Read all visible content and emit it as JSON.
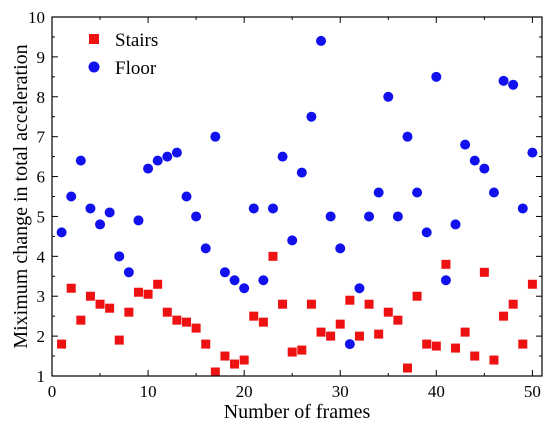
{
  "chart_data": {
    "type": "scatter",
    "xlabel": "Number of frames",
    "ylabel": "Miximum change in total acceleration",
    "xlim": [
      0,
      51
    ],
    "ylim": [
      1,
      10
    ],
    "xticks": [
      "0",
      "10",
      "20",
      "30",
      "40",
      "50"
    ],
    "yticks": [
      "1",
      "2",
      "3",
      "4",
      "5",
      "6",
      "7",
      "8",
      "9",
      "10"
    ],
    "legend_position": "top-left",
    "grid": false,
    "series": [
      {
        "name": "Stairs",
        "marker": "square",
        "color": "#ee1111",
        "x": [
          1,
          2,
          3,
          4,
          5,
          6,
          7,
          8,
          9,
          10,
          11,
          12,
          13,
          14,
          15,
          16,
          17,
          18,
          19,
          20,
          21,
          22,
          23,
          24,
          25,
          26,
          27,
          28,
          29,
          30,
          31,
          32,
          33,
          34,
          35,
          36,
          37,
          38,
          39,
          40,
          41,
          42,
          43,
          44,
          45,
          46,
          47,
          48,
          49,
          50
        ],
        "y": [
          1.8,
          3.2,
          2.4,
          3.0,
          2.8,
          2.7,
          1.9,
          2.6,
          3.1,
          3.05,
          3.3,
          2.6,
          2.4,
          2.35,
          2.2,
          1.8,
          1.1,
          1.5,
          1.3,
          1.4,
          2.5,
          2.35,
          4.0,
          2.8,
          1.6,
          1.65,
          2.8,
          2.1,
          2.0,
          2.3,
          2.9,
          2.0,
          2.8,
          2.05,
          2.6,
          2.4,
          1.2,
          3.0,
          1.8,
          1.75,
          3.8,
          1.7,
          2.1,
          1.5,
          3.6,
          1.4,
          2.5,
          2.8,
          1.8,
          3.3
        ]
      },
      {
        "name": "Floor",
        "marker": "circle",
        "color": "#1111ee",
        "x": [
          1,
          2,
          3,
          4,
          5,
          6,
          7,
          8,
          9,
          10,
          11,
          12,
          13,
          14,
          15,
          16,
          17,
          18,
          19,
          20,
          21,
          22,
          23,
          24,
          25,
          26,
          27,
          28,
          29,
          30,
          31,
          32,
          33,
          34,
          35,
          36,
          37,
          38,
          39,
          40,
          41,
          42,
          43,
          44,
          45,
          46,
          47,
          48,
          49,
          50
        ],
        "y": [
          4.6,
          5.5,
          6.4,
          5.2,
          4.8,
          5.1,
          4.0,
          3.6,
          4.9,
          6.2,
          6.4,
          6.5,
          6.6,
          5.5,
          5.0,
          4.2,
          7.0,
          3.6,
          3.4,
          3.2,
          5.2,
          3.4,
          5.2,
          6.5,
          4.4,
          6.1,
          7.5,
          9.4,
          5.0,
          4.2,
          1.8,
          3.2,
          5.0,
          5.6,
          8.0,
          5.0,
          7.0,
          5.6,
          4.6,
          8.5,
          3.4,
          4.8,
          6.8,
          6.4,
          6.2,
          5.6,
          8.4,
          8.3,
          5.2,
          6.6
        ]
      }
    ]
  }
}
